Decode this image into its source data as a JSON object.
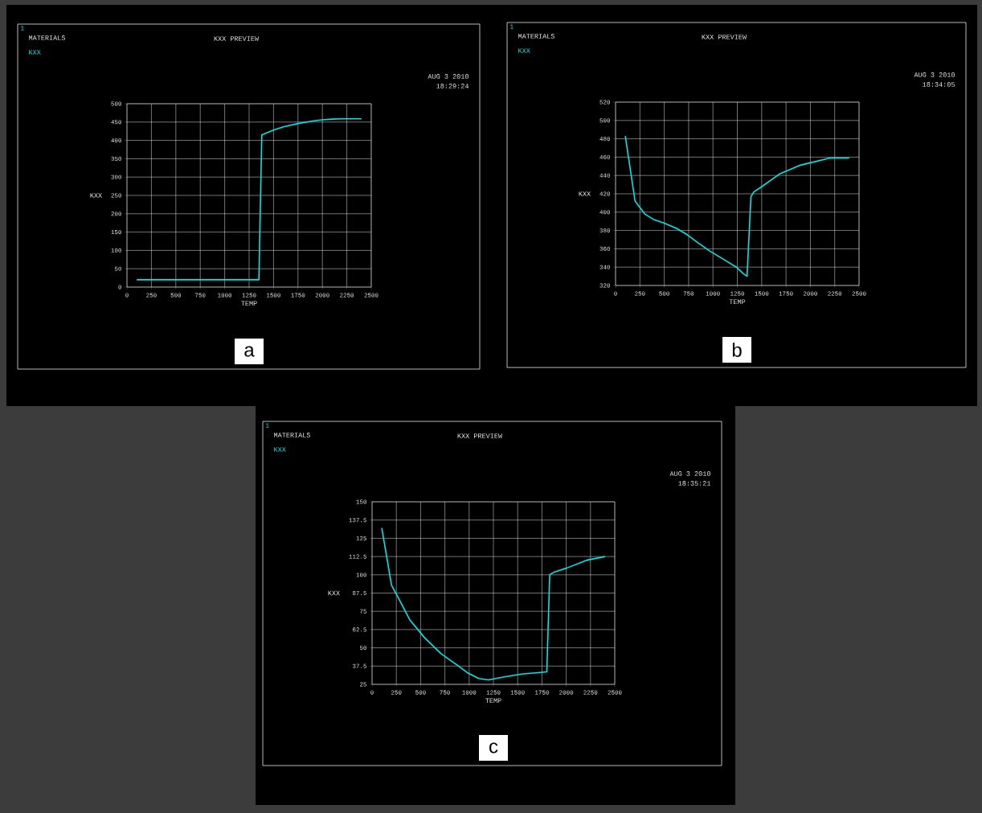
{
  "chart_data": [
    {
      "type": "line",
      "title": "KXX PREVIEW",
      "xlabel": "TEMP",
      "ylabel": "KXX",
      "grid": true,
      "annotations": [
        "1",
        "MATERIALS",
        "AUG 3 2010",
        "18:29:24",
        "a"
      ],
      "xlim": [
        0,
        2500
      ],
      "xticks": [
        0,
        250,
        500,
        750,
        1000,
        1250,
        1500,
        1750,
        2000,
        2250,
        2500
      ],
      "ylim": [
        0,
        500
      ],
      "yticks": [
        0,
        50,
        100,
        150,
        200,
        250,
        300,
        350,
        400,
        450,
        500
      ],
      "series": [
        {
          "name": "KXX",
          "color": "#00e5e5",
          "x": [
            100,
            1350,
            1380,
            1500,
            1600,
            1750,
            1900,
            2000,
            2100,
            2200,
            2400
          ],
          "values": [
            20,
            20,
            415,
            428,
            437,
            446,
            453,
            456,
            458,
            459,
            459
          ]
        }
      ]
    },
    {
      "type": "line",
      "title": "KXX PREVIEW",
      "xlabel": "TEMP",
      "ylabel": "KXX",
      "grid": true,
      "annotations": [
        "1",
        "MATERIALS",
        "AUG 3 2010",
        "18:34:05",
        "b"
      ],
      "xlim": [
        0,
        2500
      ],
      "xticks": [
        0,
        250,
        500,
        750,
        1000,
        1250,
        1500,
        1750,
        2000,
        2250,
        2500
      ],
      "ylim": [
        320,
        520
      ],
      "yticks": [
        320,
        340,
        360,
        380,
        400,
        420,
        440,
        460,
        480,
        500,
        520
      ],
      "series": [
        {
          "name": "KXX",
          "color": "#00e5e5",
          "x": [
            100,
            200,
            300,
            390,
            500,
            630,
            740,
            840,
            960,
            1100,
            1240,
            1310,
            1350,
            1390,
            1420,
            1490,
            1690,
            1890,
            2200,
            2400
          ],
          "values": [
            483,
            412,
            398,
            392,
            388,
            382,
            375,
            367,
            358,
            349,
            340,
            333,
            330,
            417,
            422,
            427,
            442,
            451,
            459,
            459
          ]
        }
      ]
    },
    {
      "type": "line",
      "title": "KXX PREVIEW",
      "xlabel": "TEMP",
      "ylabel": "KXX",
      "grid": true,
      "annotations": [
        "1",
        "MATERIALS",
        "AUG 3 2010",
        "18:35:21",
        "c"
      ],
      "xlim": [
        0,
        2500
      ],
      "xticks": [
        0,
        250,
        500,
        750,
        1000,
        1250,
        1500,
        1750,
        2000,
        2250,
        2500
      ],
      "ylim": [
        25,
        150
      ],
      "yticks": [
        25,
        37.5,
        50,
        62.5,
        75,
        87.5,
        100,
        112.5,
        125,
        137.5,
        150
      ],
      "series": [
        {
          "name": "KXX",
          "color": "#00e5e5",
          "x": [
            100,
            200,
            280,
            390,
            490,
            540,
            710,
            880,
            980,
            1100,
            1200,
            1350,
            1540,
            1800,
            1830,
            1880,
            2000,
            2210,
            2400
          ],
          "values": [
            132,
            93,
            83,
            69,
            61,
            57,
            46,
            38,
            33,
            29,
            28,
            30,
            32,
            33.5,
            100,
            102,
            104.5,
            110,
            112.5
          ]
        }
      ]
    }
  ]
}
